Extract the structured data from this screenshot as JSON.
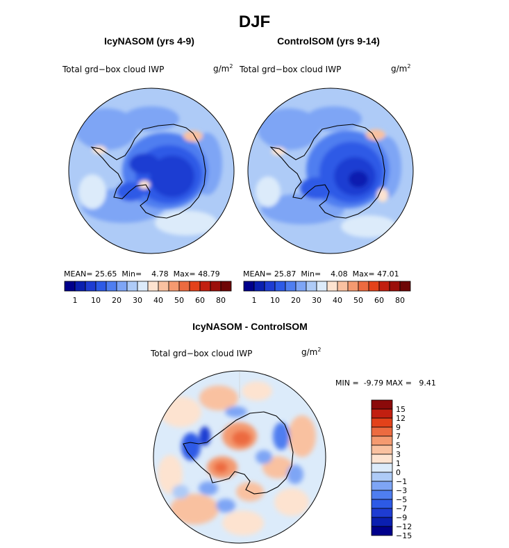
{
  "figure": {
    "title": "DJF",
    "panels": [
      {
        "id": "icy",
        "title": "IcyNASOM (yrs 4-9)",
        "variable": "Total grd−box cloud IWP",
        "units_base": "g/m",
        "units_exp": "2",
        "stats": {
          "mean_label": "MEAN=",
          "mean": "25.65",
          "min_label": "Min=",
          "min": "4.78",
          "max_label": "Max=",
          "max": "48.79"
        }
      },
      {
        "id": "control",
        "title": "ControlSOM (yrs 9-14)",
        "variable": "Total grd−box cloud IWP",
        "units_base": "g/m",
        "units_exp": "2",
        "stats": {
          "mean_label": "MEAN=",
          "mean": "25.87",
          "min_label": "Min=",
          "min": "4.08",
          "max_label": "Max=",
          "max": "47.01"
        }
      },
      {
        "id": "diff",
        "title": "IcyNASOM - ControlSOM",
        "variable": "Total grd−box cloud IWP",
        "units_base": "g/m",
        "units_exp": "2",
        "stats": {
          "min_label": "MIN =",
          "min": "-9.79",
          "max_label": "MAX =",
          "max": "9.41"
        }
      }
    ],
    "abs_colorbar": {
      "colors": [
        "#00008b",
        "#0a1fb0",
        "#1e3cd2",
        "#2d5ae6",
        "#4f7ef0",
        "#7ea5f5",
        "#aecbf7",
        "#dcebfa",
        "#fde3d0",
        "#f9c1a0",
        "#f49a70",
        "#ec6b40",
        "#e3421a",
        "#c21f10",
        "#9b0f0a",
        "#6e0606"
      ],
      "tick_labels": [
        "1",
        "10",
        "20",
        "30",
        "40",
        "50",
        "60",
        "80"
      ]
    },
    "diff_colorbar": {
      "colors": [
        "#00008b",
        "#0a1fb0",
        "#1e3cd2",
        "#2d5ae6",
        "#4f7ef0",
        "#7ea5f5",
        "#aecbf7",
        "#dcebfa",
        "#fde3d0",
        "#f9c1a0",
        "#f49a70",
        "#ec6b40",
        "#e3421a",
        "#c21f10",
        "#8b0a0a"
      ],
      "tick_labels": [
        "15",
        "12",
        "9",
        "7",
        "5",
        "3",
        "1",
        "0",
        "−1",
        "−3",
        "−5",
        "−7",
        "−9",
        "−12",
        "−15"
      ]
    }
  },
  "chart_data": [
    {
      "type": "heatmap",
      "title": "IcyNASOM (yrs 4-9)",
      "projection": "south polar stereographic",
      "variable": "Total grd-box cloud IWP",
      "units": "g/m2",
      "color_levels": [
        1,
        5,
        10,
        15,
        20,
        25,
        30,
        35,
        40,
        45,
        50,
        55,
        60,
        70,
        80
      ],
      "mean": 25.65,
      "min": 4.78,
      "max": 48.79
    },
    {
      "type": "heatmap",
      "title": "ControlSOM (yrs 9-14)",
      "projection": "south polar stereographic",
      "variable": "Total grd-box cloud IWP",
      "units": "g/m2",
      "color_levels": [
        1,
        5,
        10,
        15,
        20,
        25,
        30,
        35,
        40,
        45,
        50,
        55,
        60,
        70,
        80
      ],
      "mean": 25.87,
      "min": 4.08,
      "max": 47.01
    },
    {
      "type": "heatmap",
      "title": "IcyNASOM - ControlSOM",
      "projection": "south polar stereographic",
      "variable": "Total grd-box cloud IWP",
      "units": "g/m2",
      "color_levels": [
        -15,
        -12,
        -9,
        -7,
        -5,
        -3,
        -1,
        0,
        1,
        3,
        5,
        7,
        9,
        12,
        15
      ],
      "min": -9.79,
      "max": 9.41
    }
  ]
}
